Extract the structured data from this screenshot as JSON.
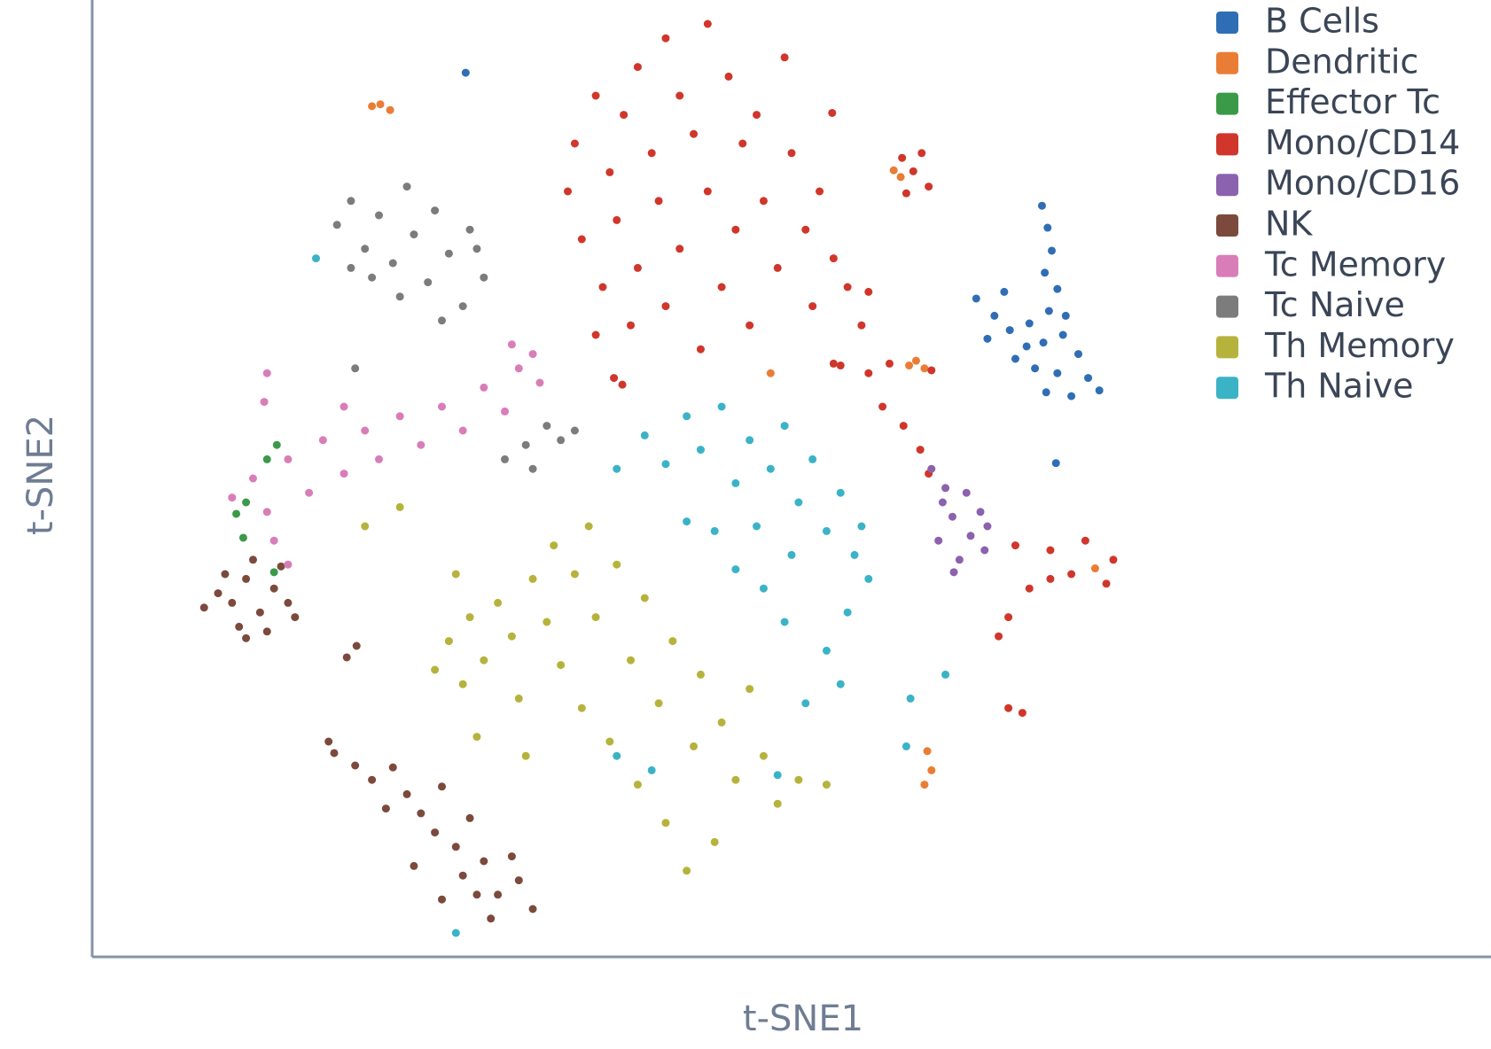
{
  "chart_data": {
    "type": "scatter",
    "xlabel": "t-SNE1",
    "ylabel": "t-SNE2",
    "xlim": [
      0,
      100
    ],
    "ylim": [
      0,
      100
    ],
    "series": [
      {
        "name": "B Cells",
        "color": "#2f6eb4",
        "x": [
          67.9,
          68.3,
          68.6,
          68.1,
          69.0,
          68.4,
          63.2,
          64.5,
          65.6,
          64.0,
          66.8,
          68.0,
          69.4,
          70.5,
          67.4,
          69.0,
          71.2,
          68.2,
          70.0,
          72.0,
          66.0,
          69.6,
          67.0,
          65.2,
          26.7,
          68.9
        ],
        "y": [
          78.5,
          76.2,
          73.8,
          71.5,
          69.8,
          67.5,
          68.8,
          67.0,
          65.5,
          64.6,
          63.8,
          64.2,
          65.0,
          63.0,
          61.5,
          61.0,
          60.5,
          59.0,
          58.6,
          59.2,
          62.5,
          67.0,
          66.2,
          69.5,
          92.4,
          51.6
        ]
      },
      {
        "name": "Dendritic",
        "color": "#ea7d35",
        "x": [
          20.6,
          21.3,
          20.0,
          58.4,
          59.5,
          58.9,
          60.0,
          59.5,
          59.7,
          57.3,
          57.8,
          48.5,
          71.7
        ],
        "y": [
          89.1,
          88.5,
          88.9,
          61.8,
          61.5,
          62.3,
          19.5,
          18.0,
          21.5,
          82.2,
          81.5,
          61.0,
          40.6
        ]
      },
      {
        "name": "Effector Tc",
        "color": "#3a9a48",
        "x": [
          10.3,
          11.0,
          13.2,
          10.8,
          13.0,
          12.5
        ],
        "y": [
          46.3,
          47.5,
          53.5,
          43.8,
          40.2,
          52.0
        ]
      },
      {
        "name": "Mono/CD14",
        "color": "#d0362b",
        "x": [
          34.0,
          34.5,
          35.0,
          36,
          36.5,
          37,
          37.5,
          38,
          38.5,
          39,
          39,
          40,
          40.5,
          41,
          41,
          42,
          42,
          43,
          43.5,
          44,
          44,
          45,
          45.5,
          46,
          46.5,
          47,
          47.5,
          48,
          49,
          49.5,
          50,
          51,
          51.5,
          52,
          53,
          54,
          55.5,
          55,
          53,
          36,
          58.7,
          59.3,
          58.2,
          59.8,
          57.9,
          56.5,
          58.0,
          59.2,
          59.8,
          66.0,
          68.5,
          71.0,
          73.0,
          70.0,
          67.0,
          65.5,
          68.5,
          64.8,
          72.5,
          66.5,
          65.5,
          37.3,
          37.9,
          52.9,
          53.5,
          55.5,
          57.0,
          60.0
        ],
        "y": [
          80,
          85,
          75,
          90,
          70,
          82,
          77,
          88,
          66,
          93,
          72,
          84,
          79,
          96,
          68,
          90,
          74,
          86,
          63.5,
          97.5,
          80,
          70,
          92,
          76,
          85,
          66,
          88,
          79,
          72,
          94,
          84,
          76,
          68,
          80,
          73,
          70,
          69.5,
          66,
          62,
          65,
          82.1,
          84,
          79.8,
          80.5,
          83.5,
          57.5,
          55.5,
          53.0,
          50.5,
          43.0,
          42.5,
          43.5,
          41.5,
          40.0,
          38.5,
          35.5,
          39.5,
          33.5,
          39.0,
          25.5,
          26.0,
          60.5,
          59.8,
          88.2,
          61.8,
          61.0,
          62.0,
          61.3
        ]
      },
      {
        "name": "Mono/CD16",
        "color": "#8b62ad",
        "x": [
          60.0,
          61.0,
          62.5,
          63.5,
          61.5,
          62.8,
          60.5,
          62.0,
          63.8,
          61.6,
          64.0,
          60.8
        ],
        "y": [
          51.0,
          49.0,
          48.5,
          46.5,
          46.0,
          44.0,
          43.5,
          41.5,
          42.5,
          40.2,
          45.0,
          47.5
        ]
      },
      {
        "name": "NK",
        "color": "#7b4a3d",
        "x": [
          8.0,
          9.0,
          10.0,
          11.0,
          12.0,
          13.0,
          14.0,
          10.5,
          12.5,
          14.5,
          11.5,
          9.5,
          13.5,
          11.0,
          18.8,
          20.0,
          21.5,
          22.5,
          21.0,
          23.5,
          25.0,
          24.5,
          26.0,
          27.0,
          28.0,
          26.5,
          29.0,
          30.5,
          31.5,
          28.5,
          25.0,
          23.0,
          27.5,
          30.0,
          16.9,
          17.3,
          18.9,
          18.2
        ],
        "y": [
          36.5,
          38.0,
          37.0,
          39.5,
          36.0,
          38.5,
          37.0,
          34.5,
          34.0,
          35.5,
          41.5,
          40.0,
          40.8,
          33.3,
          20.0,
          18.5,
          19.8,
          17.0,
          15.5,
          15.0,
          17.8,
          13.0,
          11.5,
          14.5,
          10.0,
          8.5,
          6.5,
          8.0,
          5.0,
          4.0,
          6.0,
          9.5,
          6.5,
          10.5,
          22.5,
          21.3,
          32.5,
          31.3
        ]
      },
      {
        "name": "Tc Memory",
        "color": "#d97db8",
        "x": [
          10.0,
          11.5,
          12.5,
          14.0,
          15.5,
          16.5,
          18.0,
          19.5,
          20.5,
          22.0,
          23.5,
          25.0,
          26.5,
          28.0,
          29.5,
          30.5,
          31.5,
          32.0,
          30.0,
          12.5,
          12.3,
          13.0,
          14.0,
          18.0
        ],
        "y": [
          48.0,
          50.0,
          46.5,
          52.0,
          48.5,
          54.0,
          50.5,
          55.0,
          52.0,
          56.5,
          53.5,
          57.5,
          55.0,
          59.5,
          57.0,
          61.5,
          63.0,
          60.0,
          64.0,
          61.0,
          58.0,
          43.5,
          41.0,
          57.5
        ]
      },
      {
        "name": "Tc Naive",
        "color": "#7c7c7c",
        "x": [
          17.5,
          18.5,
          19.5,
          20.5,
          21.5,
          22.5,
          23.0,
          24.0,
          24.5,
          25.5,
          26.5,
          27.0,
          28.0,
          22.0,
          25.0,
          20.0,
          18.5,
          27.5,
          29.5,
          31.0,
          32.5,
          33.5,
          31.5,
          34.5,
          18.8
        ],
        "y": [
          76.5,
          79.0,
          74.0,
          77.5,
          72.5,
          80.5,
          75.5,
          70.5,
          78.0,
          73.5,
          68.0,
          76.0,
          71.0,
          69.0,
          66.5,
          71.0,
          72.0,
          74.0,
          52.0,
          53.5,
          55.5,
          54.0,
          51.0,
          55.0,
          61.5
        ]
      },
      {
        "name": "Th Memory",
        "color": "#b6b33c",
        "x": [
          24.5,
          25.5,
          26.5,
          27.0,
          28.0,
          29.0,
          30.0,
          30.5,
          31.5,
          32.5,
          33.0,
          33.5,
          34.5,
          35.0,
          35.5,
          36.0,
          37.0,
          37.5,
          38.5,
          39.0,
          39.5,
          40.5,
          41.0,
          41.5,
          42.5,
          43.0,
          43.5,
          44.5,
          45.0,
          46.0,
          47.0,
          48.0,
          49.0,
          50.5,
          52.5,
          27.5,
          31.0,
          19.5,
          22.0,
          26.0
        ],
        "y": [
          30.0,
          33.0,
          28.5,
          35.5,
          31.0,
          37.0,
          33.5,
          27.0,
          39.5,
          35.0,
          43.0,
          30.5,
          40.0,
          26.0,
          45.0,
          35.5,
          22.5,
          41.0,
          31.0,
          18.0,
          37.5,
          26.5,
          14.0,
          33.0,
          9.0,
          22.0,
          29.5,
          12.0,
          24.5,
          18.5,
          28.0,
          21.0,
          16.0,
          18.5,
          18.0,
          23.0,
          21.0,
          45.0,
          47.0,
          40.0
        ]
      },
      {
        "name": "Th Naive",
        "color": "#3bb3c6",
        "x": [
          37.5,
          39.5,
          41.0,
          42.5,
          43.5,
          45.0,
          46.0,
          47.0,
          48.5,
          49.5,
          50.5,
          51.5,
          52.5,
          53.5,
          54.5,
          55.5,
          54.0,
          52.5,
          53.5,
          51.0,
          49.5,
          48.0,
          46.0,
          44.5,
          50.0,
          47.5,
          55.0,
          42.5,
          37.5,
          40.0,
          49.0,
          26.0,
          61.0,
          16.0,
          58.5,
          58.2
        ],
        "y": [
          51.0,
          54.5,
          51.5,
          56.5,
          53.0,
          57.5,
          49.5,
          54.0,
          51.0,
          55.5,
          47.5,
          52.0,
          44.5,
          48.5,
          42.0,
          39.5,
          36.0,
          32.0,
          28.5,
          26.5,
          35.0,
          38.5,
          40.5,
          44.5,
          42.0,
          45.0,
          45.0,
          45.5,
          21.0,
          19.5,
          19.0,
          2.5,
          29.5,
          73.0,
          27.0,
          22.0
        ]
      }
    ]
  }
}
